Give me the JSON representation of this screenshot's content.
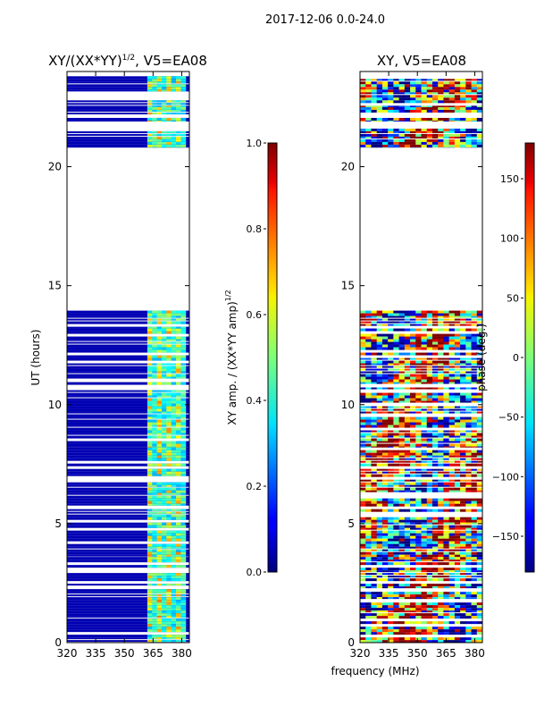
{
  "figure_title": "2017-12-06 0.0-24.0",
  "shared_xlabel": "frequency (MHz)",
  "chart_data": [
    {
      "type": "heatmap",
      "title": "XY/(XX*YY)^{1/2}, V5=EA08",
      "title_main": "XY/(XX*YY)",
      "title_sup": "1/2",
      "title_tail": ", V5=EA08",
      "xlabel": "",
      "ylabel": "UT (hours)",
      "xlim": [
        320,
        384
      ],
      "ylim": [
        0,
        24
      ],
      "xticks": [
        320,
        335,
        350,
        365,
        380
      ],
      "yticks": [
        0,
        5,
        10,
        15,
        20
      ],
      "colorbar": {
        "label": "XY amp. / (XX*YY amp)^{1/2}",
        "label_main": "XY amp. / (XX*YY amp)",
        "label_sup": "1/2",
        "range": [
          0.0,
          1.0
        ],
        "ticks": [
          0.0,
          0.2,
          0.4,
          0.6,
          0.8,
          1.0
        ],
        "tick_labels": [
          "0.0",
          "0.2",
          "0.4",
          "0.6",
          "0.8",
          "1.0"
        ],
        "colormap": "jet"
      },
      "data_bands_hours": [
        [
          0.0,
          3.6
        ],
        [
          3.6,
          8.2
        ],
        [
          8.2,
          13.2
        ],
        [
          13.2,
          13.95
        ],
        [
          20.8,
          21.6
        ],
        [
          21.9,
          22.5
        ],
        [
          22.5,
          23.8
        ]
      ],
      "background_value": 0.05,
      "high_freq_range_mhz": [
        362,
        382
      ],
      "high_freq_value_range": [
        0.3,
        0.75
      ]
    },
    {
      "type": "heatmap",
      "title": "XY, V5=EA08",
      "xlabel": "frequency (MHz)",
      "ylabel": "",
      "xlim": [
        320,
        384
      ],
      "ylim": [
        0,
        24
      ],
      "xticks": [
        320,
        335,
        350,
        365,
        380
      ],
      "yticks": [
        0,
        5,
        10,
        15,
        20
      ],
      "colorbar": {
        "label": "phase (deg.)",
        "range": [
          -180,
          180
        ],
        "ticks": [
          -150,
          -100,
          -50,
          0,
          50,
          100,
          150
        ],
        "tick_labels": [
          "−150",
          "−100",
          "−50",
          "0",
          "50",
          "100",
          "150"
        ],
        "colormap": "jet"
      },
      "data_bands_hours": [
        [
          0.0,
          3.6
        ],
        [
          3.6,
          8.2
        ],
        [
          8.2,
          13.2
        ],
        [
          13.2,
          13.95
        ],
        [
          20.8,
          21.6
        ],
        [
          21.9,
          22.5
        ],
        [
          22.5,
          23.8
        ]
      ],
      "value_range_deg": [
        -180,
        180
      ]
    }
  ]
}
